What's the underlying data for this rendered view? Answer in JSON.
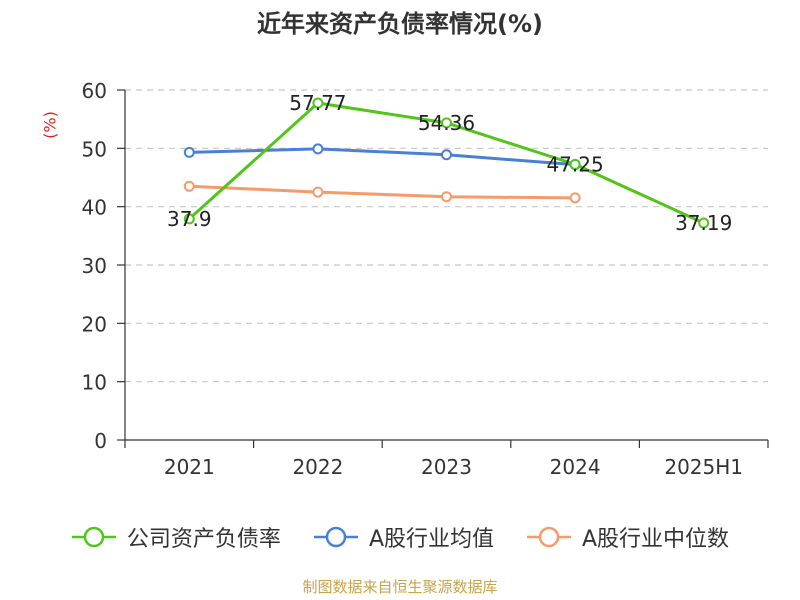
{
  "chart_data": {
    "type": "line",
    "title": "近年来资产负债率情况(%)",
    "ylabel": "(%)",
    "categories": [
      "2021",
      "2022",
      "2023",
      "2024",
      "2025H1"
    ],
    "yticks": [
      "0",
      "10",
      "20",
      "30",
      "40",
      "50",
      "60"
    ],
    "ylim": [
      0,
      60
    ],
    "grid": true,
    "legend_position": "bottom",
    "series": [
      {
        "name": "公司资产负债率",
        "color": "#52c41a",
        "values": [
          37.9,
          57.77,
          54.36,
          47.25,
          37.19
        ],
        "labels": [
          "37.9",
          "57.77",
          "54.36",
          "47.25",
          "37.19"
        ]
      },
      {
        "name": "A股行业均值",
        "color": "#4a7fd6",
        "values": [
          49.3,
          49.9,
          48.9,
          47.2,
          null
        ]
      },
      {
        "name": "A股行业中位数",
        "color": "#f79a6a",
        "values": [
          43.5,
          42.5,
          41.7,
          41.5,
          null
        ]
      }
    ],
    "source": "制图数据来自恒生聚源数据库"
  }
}
